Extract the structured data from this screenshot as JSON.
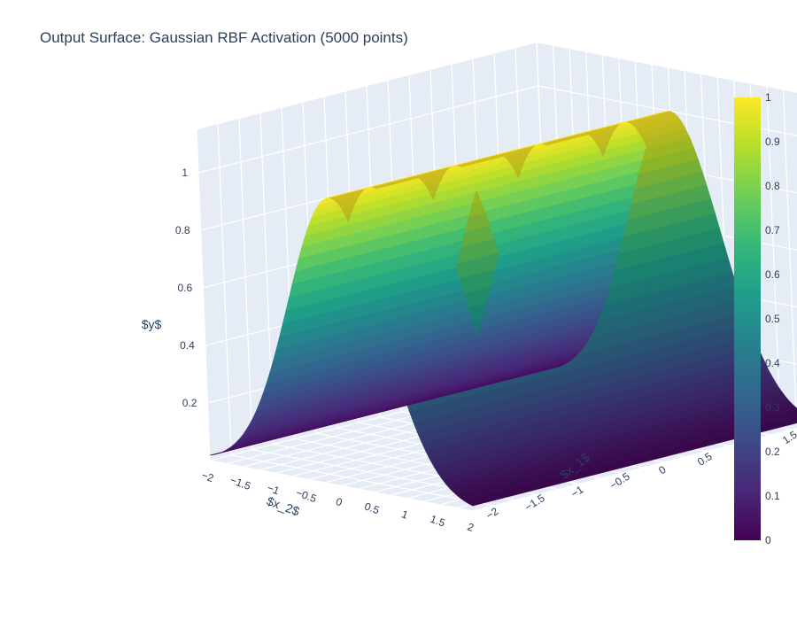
{
  "chart_data": {
    "type": "surface",
    "title": "Output Surface: Gaussian RBF Activation (5000 points)",
    "function": "y = exp(-x_2^2)",
    "x_axis": {
      "label": "$x_1$",
      "range": [
        -2,
        2
      ],
      "ticks": [
        "−2",
        "−1.5",
        "−1",
        "−0.5",
        "0",
        "0.5",
        "1",
        "1.5",
        "2"
      ]
    },
    "y_axis": {
      "label": "$x_2$",
      "range": [
        -2,
        2
      ],
      "ticks": [
        "−2",
        "−1.5",
        "−1",
        "−0.5",
        "0",
        "0.5",
        "1",
        "1.5",
        "2"
      ]
    },
    "z_axis": {
      "label": "$y$",
      "range": [
        0,
        1
      ],
      "ticks": [
        "0.2",
        "0.4",
        "0.6",
        "0.8",
        "1"
      ]
    },
    "colorscale": "Viridis",
    "colorscale_stops": [
      "#440154",
      "#482878",
      "#3e4989",
      "#31688e",
      "#26828e",
      "#1f9e89",
      "#35b779",
      "#6ece58",
      "#b5de2b",
      "#fde725"
    ],
    "colorbar": {
      "range": [
        0,
        1
      ],
      "ticks": [
        "0",
        "0.1",
        "0.2",
        "0.3",
        "0.4",
        "0.5",
        "0.6",
        "0.7",
        "0.8",
        "0.9",
        "1"
      ]
    },
    "grid": true,
    "scene_background": "#e5ecf6"
  }
}
